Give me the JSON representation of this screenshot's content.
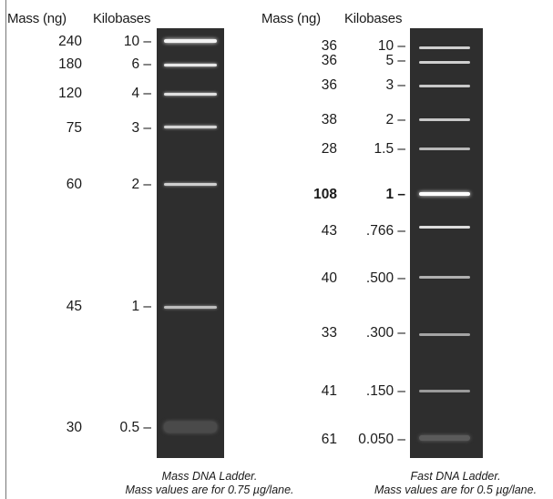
{
  "left_panel": {
    "header_mass": "Mass (ng)",
    "header_kb": "Kilobases",
    "rows": [
      {
        "mass": "240",
        "kb": "10 –"
      },
      {
        "mass": "180",
        "kb": "6 –"
      },
      {
        "mass": "120",
        "kb": "4 –"
      },
      {
        "mass": "75",
        "kb": "3 –"
      },
      {
        "mass": "60",
        "kb": "2 –"
      },
      {
        "mass": "45",
        "kb": "1 –"
      },
      {
        "mass": "30",
        "kb": "0.5 –"
      }
    ],
    "caption_line1": "Mass DNA Ladder.",
    "caption_line2": "Mass values are for 0.75 µg/lane."
  },
  "right_panel": {
    "header_mass": "Mass (ng)",
    "header_kb": "Kilobases",
    "rows": [
      {
        "mass": "36",
        "kb": "10 –"
      },
      {
        "mass": "36",
        "kb": "5 –"
      },
      {
        "mass": "36",
        "kb": "3 –"
      },
      {
        "mass": "38",
        "kb": "2 –"
      },
      {
        "mass": "28",
        "kb": "1.5 –"
      },
      {
        "mass": "108",
        "kb": "1 –",
        "bold": true
      },
      {
        "mass": "43",
        "kb": ".766 –"
      },
      {
        "mass": "40",
        "kb": ".500 –"
      },
      {
        "mass": "33",
        "kb": ".300 –"
      },
      {
        "mass": "41",
        "kb": ".150 –"
      },
      {
        "mass": "61",
        "kb": "0.050 –"
      }
    ],
    "caption_line1": "Fast DNA Ladder.",
    "caption_line2": "Mass values are for 0.5 µg/lane."
  },
  "colors": {
    "gel_background": "#2e2e2e",
    "band": "#e6e6e6"
  }
}
